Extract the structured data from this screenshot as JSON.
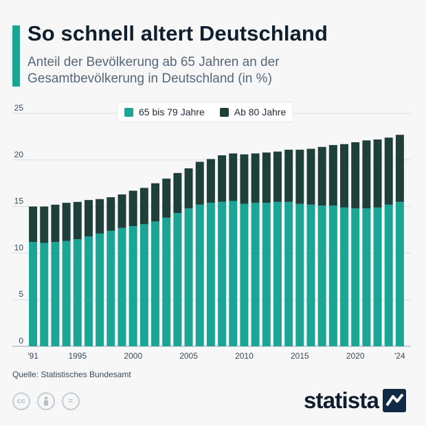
{
  "header": {
    "title": "So schnell altert Deutschland",
    "subtitle": "Anteil der Bevölkerung ab 65 Jahren an der Gesamtbevölkerung in Deutschland (in %)"
  },
  "chart_data": {
    "type": "bar",
    "stacked": true,
    "title": "So schnell altert Deutschland",
    "subtitle": "Anteil der Bevölkerung ab 65 Jahren an der Gesamtbevölkerung in Deutschland (in %)",
    "xlabel": "",
    "ylabel": "",
    "ylim": [
      0,
      25
    ],
    "yticks": [
      0,
      5,
      10,
      15,
      20,
      25
    ],
    "grid": true,
    "legend_position": "top-center",
    "categories": [
      1991,
      1992,
      1993,
      1994,
      1995,
      1996,
      1997,
      1998,
      1999,
      2000,
      2001,
      2002,
      2003,
      2004,
      2005,
      2006,
      2007,
      2008,
      2009,
      2010,
      2011,
      2012,
      2013,
      2014,
      2015,
      2016,
      2017,
      2018,
      2019,
      2020,
      2021,
      2022,
      2023,
      2024
    ],
    "xtick_labels": [
      {
        "year": 1991,
        "label": "'91"
      },
      {
        "year": 1995,
        "label": "1995"
      },
      {
        "year": 2000,
        "label": "2000"
      },
      {
        "year": 2005,
        "label": "2005"
      },
      {
        "year": 2010,
        "label": "2010"
      },
      {
        "year": 2015,
        "label": "2015"
      },
      {
        "year": 2020,
        "label": "2020"
      },
      {
        "year": 2024,
        "label": "'24"
      }
    ],
    "series": [
      {
        "name": "65 bis 79 Jahre",
        "color": "#1aa595",
        "values": [
          11.2,
          11.1,
          11.2,
          11.3,
          11.5,
          11.8,
          12.1,
          12.4,
          12.7,
          12.9,
          13.1,
          13.4,
          13.8,
          14.3,
          14.8,
          15.2,
          15.4,
          15.5,
          15.6,
          15.3,
          15.4,
          15.4,
          15.5,
          15.5,
          15.3,
          15.2,
          15.1,
          15.1,
          14.9,
          14.8,
          14.8,
          14.9,
          15.2,
          15.5
        ]
      },
      {
        "name": "Ab 80 Jahre",
        "color": "#1e3f3a",
        "values": [
          3.8,
          3.9,
          4.0,
          4.1,
          4.0,
          3.9,
          3.7,
          3.6,
          3.6,
          3.8,
          3.9,
          4.1,
          4.2,
          4.3,
          4.3,
          4.6,
          4.7,
          5.0,
          5.1,
          5.3,
          5.3,
          5.4,
          5.4,
          5.6,
          5.8,
          6.0,
          6.3,
          6.5,
          6.8,
          7.1,
          7.3,
          7.3,
          7.2,
          7.2
        ]
      }
    ]
  },
  "source": "Quelle: Statistisches Bundesamt",
  "brand": "statista",
  "license_icons": [
    "cc-icon",
    "by-icon",
    "nd-icon"
  ],
  "license_glyphs": {
    "cc": "cc",
    "nd": "="
  }
}
